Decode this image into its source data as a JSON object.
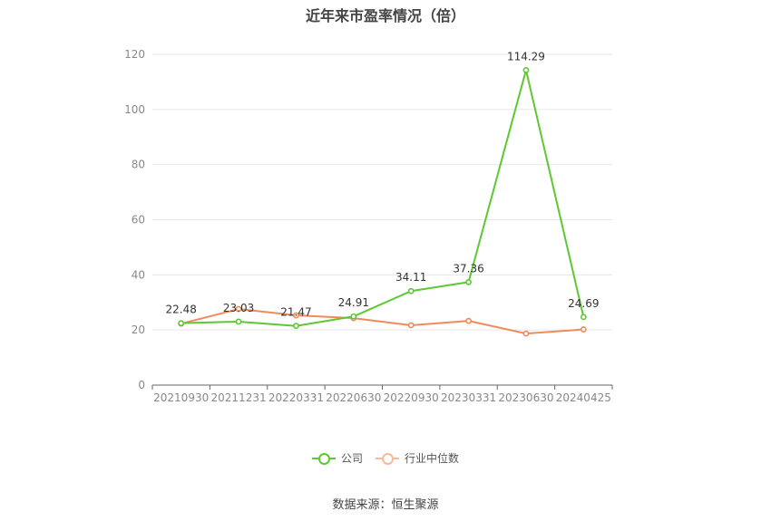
{
  "chart_data": {
    "type": "line",
    "title": "近年来市盈率情况（倍）",
    "xlabel": "",
    "ylabel": "",
    "categories": [
      "20210930",
      "20211231",
      "20220331",
      "20220630",
      "20220930",
      "20230331",
      "20230630",
      "20240425"
    ],
    "ylim": [
      0,
      120
    ],
    "yticks": [
      0,
      20,
      40,
      60,
      80,
      100,
      120
    ],
    "grid": true,
    "legend_position": "bottom",
    "series": [
      {
        "name": "公司",
        "color": "#5cc832",
        "values": [
          22.48,
          23.03,
          21.47,
          24.91,
          34.11,
          37.36,
          114.29,
          24.69
        ],
        "labels": [
          "22.48",
          "23.03",
          "21.47",
          "24.91",
          "34.11",
          "37.36",
          "114.29",
          "24.69"
        ]
      },
      {
        "name": "行业中位数",
        "color": "#f08a5d",
        "values": [
          22.3,
          27.6,
          25.3,
          24.3,
          21.7,
          23.3,
          18.7,
          20.2
        ]
      }
    ]
  },
  "source": "数据来源：恒生聚源"
}
